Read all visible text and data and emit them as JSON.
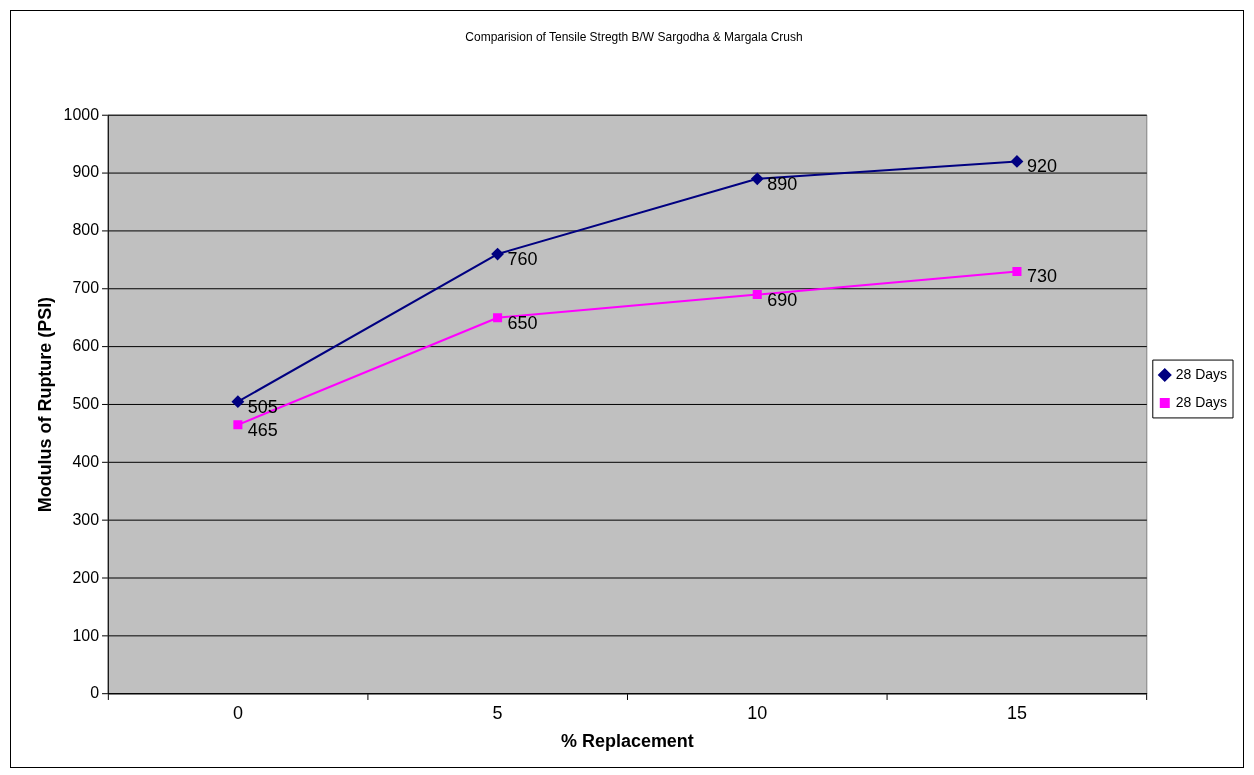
{
  "chart_data": {
    "type": "line",
    "title": "Comparision of Tensile Stregth B/W Sargodha & Margala Crush",
    "xlabel": "% Replacement",
    "ylabel": "Modulus of Rupture (PSI)",
    "categories": [
      "0",
      "5",
      "10",
      "15"
    ],
    "series": [
      {
        "name": "28 Days",
        "color": "#000080",
        "values": [
          505,
          760,
          890,
          920
        ],
        "marker": "diamond"
      },
      {
        "name": "28 Days",
        "color": "#ff00ff",
        "values": [
          465,
          650,
          690,
          730
        ],
        "marker": "square"
      }
    ],
    "ylim": [
      0,
      1000
    ],
    "yticks": [
      0,
      100,
      200,
      300,
      400,
      500,
      600,
      700,
      800,
      900,
      1000
    ],
    "grid": "y",
    "legend": "right",
    "data_labels": true
  }
}
